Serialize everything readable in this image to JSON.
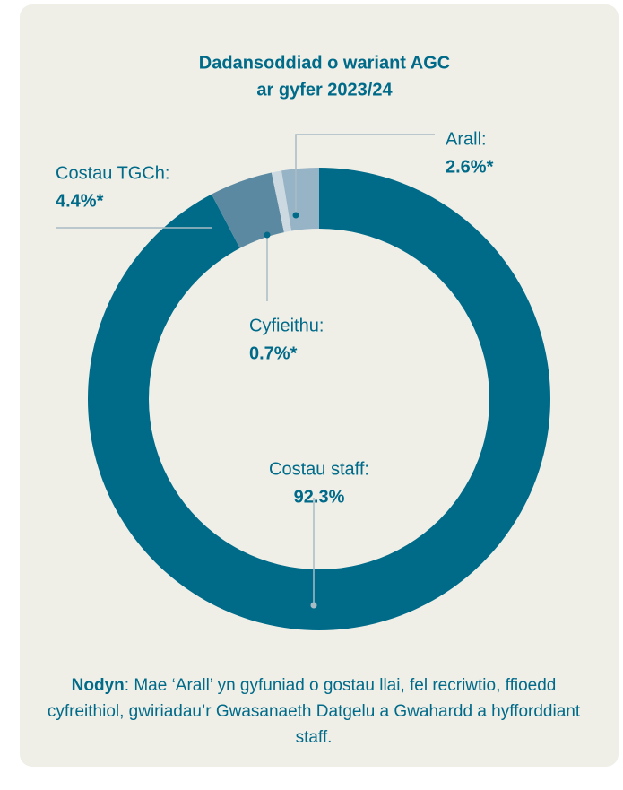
{
  "chart_data": {
    "type": "donut",
    "title": [
      "Dadansoddiad o wariant AGC",
      "ar gyfer 2023/24"
    ],
    "categories": [
      "Costau staff:",
      "Costau TGCh:",
      "Cyfieithu:",
      "Arall:"
    ],
    "values": [
      92.3,
      4.4,
      0.7,
      2.6
    ],
    "value_labels": [
      "92.3%",
      "4.4%*",
      "0.7%*",
      "2.6%*"
    ],
    "colors": [
      "#006a89",
      "#5b89a1",
      "#cdd9e1",
      "#97b3c6"
    ]
  },
  "note": {
    "label": "Nodyn",
    "text": ": Mae ‘Arall’ yn gyfuniad o gostau llai, fel recriwtio, ffioedd cyfreithiol, gwiriadau’r Gwasanaeth Datgelu a Gwahardd a hyfforddiant staff."
  }
}
